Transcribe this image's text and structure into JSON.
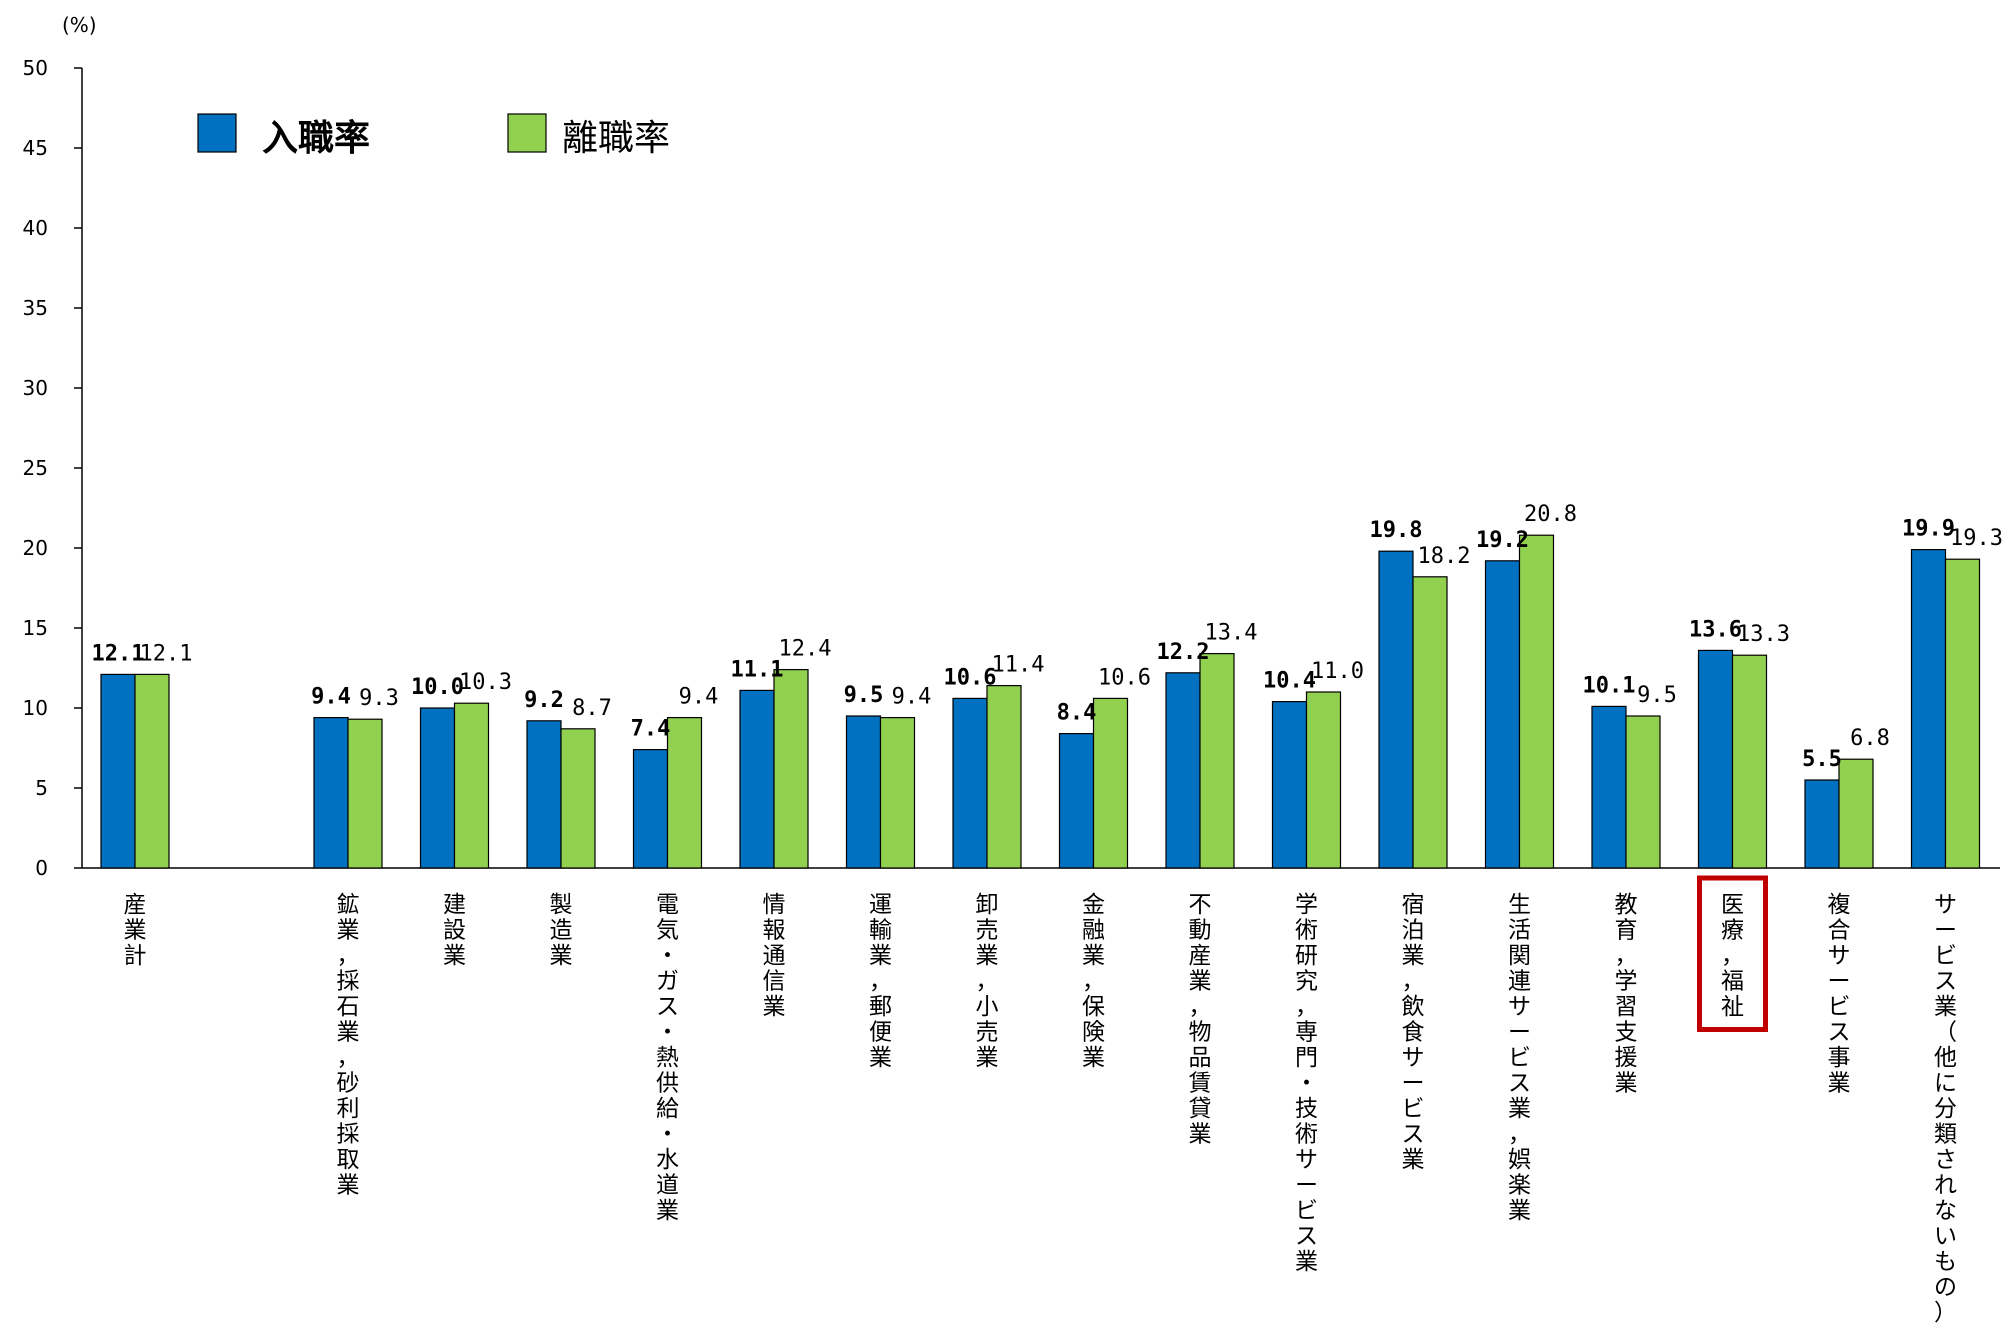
{
  "chart_data": {
    "type": "bar",
    "unit_label": "(%)",
    "ylim": [
      0,
      50
    ],
    "yticks": [
      0,
      5,
      10,
      15,
      20,
      25,
      30,
      35,
      40,
      45,
      50
    ],
    "grid": false,
    "legend_position": "top-left",
    "colors": {
      "entry_rate": "#0070C0",
      "separation_rate": "#92D050",
      "highlight": "#C00000"
    },
    "categories": [
      "産業計",
      "",
      "鉱業，採石業，砂利採取業",
      "建設業",
      "製造業",
      "電気・ガス・熱供給・水道業",
      "情報通信業",
      "運輸業，郵便業",
      "卸売業，小売業",
      "金融業，保険業",
      "不動産業，物品賃貸業",
      "学術研究，専門・技術サービス業",
      "宿泊業，飲食サービス業",
      "生活関連サービス業，娯楽業",
      "教育，学習支援業",
      "医療，福祉",
      "複合サービス事業",
      "サービス業（他に分類されないもの）"
    ],
    "highlighted_category": "医療，福祉",
    "series": [
      {
        "name": "入職率",
        "values": [
          12.1,
          null,
          9.4,
          10.0,
          9.2,
          7.4,
          11.1,
          9.5,
          10.6,
          8.4,
          12.2,
          10.4,
          19.8,
          19.2,
          10.1,
          13.6,
          5.5,
          19.9
        ]
      },
      {
        "name": "離職率",
        "values": [
          12.1,
          null,
          9.3,
          10.3,
          8.7,
          9.4,
          12.4,
          9.4,
          11.4,
          10.6,
          13.4,
          11.0,
          18.2,
          20.8,
          9.5,
          13.3,
          6.8,
          19.3
        ]
      }
    ],
    "value_labels": {
      "entry_rate": [
        "12.1",
        "",
        "9.4",
        "10.0",
        "9.2",
        "7.4",
        "11.1",
        "9.5",
        "10.6",
        "8.4",
        "12.2",
        "10.4",
        "19.8",
        "19.2",
        "10.1",
        "13.6",
        "5.5",
        "19.9"
      ],
      "separation_rate": [
        "12.1",
        "",
        "9.3",
        "10.3",
        "8.7",
        "9.4",
        "12.4",
        "9.4",
        "11.4",
        "10.6",
        "13.4",
        "11.0",
        "18.2",
        "20.8",
        "9.5",
        "13.3",
        "6.8",
        "19.3"
      ]
    }
  }
}
